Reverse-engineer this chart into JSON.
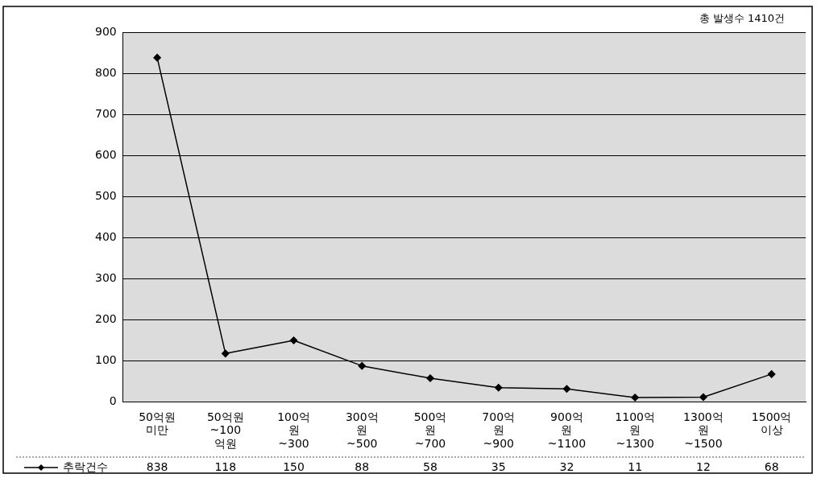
{
  "chart_data": {
    "type": "line",
    "categories": [
      "50억원\n미만",
      "50억원\n~100\n억원",
      "100억\n원\n~300",
      "300억\n원\n~500",
      "500억\n원\n~700",
      "700억\n원\n~900",
      "900억\n원\n~1100",
      "1100억\n원\n~1300",
      "1300억\n원\n~1500",
      "1500억\n이상"
    ],
    "series": [
      {
        "name": "추락건수",
        "color": "#000000",
        "values": [
          838,
          118,
          150,
          88,
          58,
          35,
          32,
          11,
          12,
          68
        ]
      }
    ],
    "ylim": [
      0,
      900
    ],
    "yticks": [
      0,
      100,
      200,
      300,
      400,
      500,
      600,
      700,
      800,
      900
    ],
    "grid": "y",
    "legend": "bottom",
    "marker": "diamond",
    "line_style": "solid",
    "data_labels": true,
    "annotations": [
      "총 발생수 1410건"
    ]
  }
}
